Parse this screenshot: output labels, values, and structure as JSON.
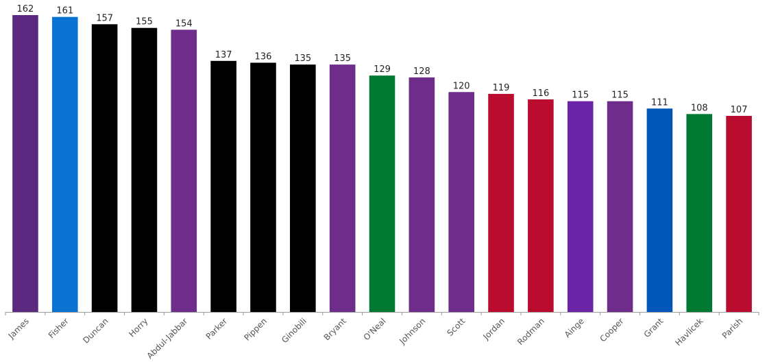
{
  "chart_data": {
    "type": "bar",
    "title": "",
    "xlabel": "",
    "ylabel": "",
    "ylim": [
      0,
      162
    ],
    "grid": false,
    "legend": "none",
    "categories": [
      "James",
      "Fisher",
      "Duncan",
      "Horry",
      "Abdul-Jabbar",
      "Parker",
      "Pippen",
      "Ginobili",
      "Bryant",
      "O'Neal",
      "Johnson",
      "Scott",
      "Jordan",
      "Rodman",
      "Ainge",
      "Cooper",
      "Grant",
      "Havlicek",
      "Parish"
    ],
    "values": [
      162,
      161,
      157,
      155,
      154,
      137,
      136,
      135,
      135,
      129,
      128,
      120,
      119,
      116,
      115,
      115,
      111,
      108,
      107
    ],
    "data_labels": [
      "162",
      "161",
      "157",
      "155",
      "154",
      "137",
      "136",
      "135",
      "135",
      "129",
      "128",
      "120",
      "119",
      "116",
      "115",
      "115",
      "111",
      "108",
      "107"
    ],
    "colors": [
      "#5b2a80",
      "#0b73d1",
      "#000000",
      "#000000",
      "#6e2d8b",
      "#000000",
      "#000000",
      "#000000",
      "#6e2d8b",
      "#007a33",
      "#6e2d8b",
      "#6e2d8b",
      "#ba0c2f",
      "#ba0c2f",
      "#6a24a6",
      "#6e2d8b",
      "#0057b8",
      "#007a33",
      "#ba0c2f"
    ]
  }
}
